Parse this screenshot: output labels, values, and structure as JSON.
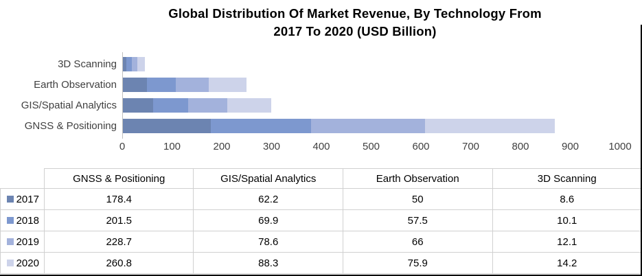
{
  "header": {
    "title_line1": "Global Distribution Of Market Revenue, By Technology From",
    "title_line2": "2017 To 2020 (USD Billion)"
  },
  "chart_data": {
    "type": "bar",
    "subtype": "stacked-horizontal",
    "title": "Global Distribution Of Market Revenue, By Technology From 2017 To 2020 (USD Billion)",
    "categories": [
      "3D Scanning",
      "Earth Observation",
      "GIS/Spatial Analytics",
      "GNSS & Positioning"
    ],
    "series": [
      {
        "name": "2017",
        "color": "#6C84B1",
        "values": [
          8.6,
          50,
          62.2,
          178.4
        ]
      },
      {
        "name": "2018",
        "color": "#7D98CF",
        "values": [
          10.1,
          57.5,
          69.9,
          201.5
        ]
      },
      {
        "name": "2019",
        "color": "#A3B2DC",
        "values": [
          12.1,
          66,
          78.6,
          228.7
        ]
      },
      {
        "name": "2020",
        "color": "#CDD3EA",
        "values": [
          14.2,
          75.9,
          88.3,
          260.8
        ]
      }
    ],
    "xlabel": "",
    "ylabel": "",
    "axis": {
      "min": 0,
      "max": 1000,
      "ticks": [
        0,
        100,
        200,
        300,
        400,
        500,
        600,
        700,
        800,
        900,
        1000
      ]
    },
    "grid": false,
    "legend_position": "table-rows-left"
  },
  "table": {
    "columns": [
      "GNSS & Positioning",
      "GIS/Spatial Analytics",
      "Earth Observation",
      "3D Scanning"
    ],
    "rows": [
      {
        "year": "2017",
        "swatch": "#6C84B1",
        "values": [
          "178.4",
          "62.2",
          "50",
          "8.6"
        ]
      },
      {
        "year": "2018",
        "swatch": "#7D98CF",
        "values": [
          "201.5",
          "69.9",
          "57.5",
          "10.1"
        ]
      },
      {
        "year": "2019",
        "swatch": "#A3B2DC",
        "values": [
          "228.7",
          "78.6",
          "66",
          "12.1"
        ]
      },
      {
        "year": "2020",
        "swatch": "#CDD3EA",
        "values": [
          "260.8",
          "88.3",
          "75.9",
          "14.2"
        ]
      }
    ]
  }
}
